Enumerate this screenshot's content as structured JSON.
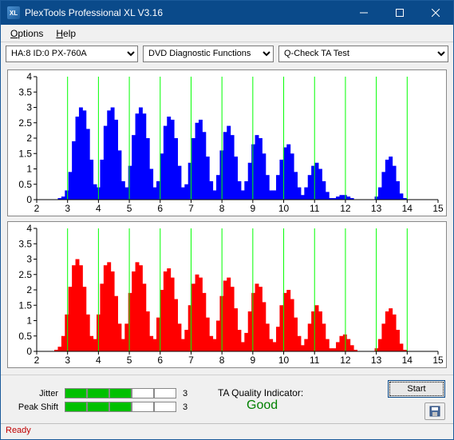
{
  "window": {
    "title": "PlexTools Professional XL V3.16",
    "logo_text": "XL"
  },
  "menubar": {
    "options": "Options",
    "help": "Help"
  },
  "toolbar": {
    "device": "HA:8 ID:0   PX-760A",
    "function": "DVD Diagnostic Functions",
    "test": "Q-Check TA Test"
  },
  "chart": {
    "x_min": 2,
    "x_max": 15,
    "x_step": 1,
    "y_min": 0,
    "y_max": 4,
    "y_step": 0.5,
    "plot_bg": "#ffffff",
    "grid_color": "#00ff00",
    "axis_color": "#000000",
    "top": {
      "fill": "#0000ff",
      "heights": [
        0,
        0,
        0,
        0,
        0,
        0,
        0.05,
        0.1,
        0.3,
        0.9,
        1.9,
        2.7,
        3.0,
        2.9,
        2.3,
        1.3,
        0.5,
        0.4,
        1.3,
        2.4,
        2.9,
        3.0,
        2.6,
        1.6,
        0.6,
        0.4,
        1.1,
        2.1,
        2.8,
        3.0,
        2.8,
        2.0,
        1.0,
        0.4,
        0.6,
        1.5,
        2.4,
        2.7,
        2.6,
        2.0,
        1.1,
        0.4,
        0.5,
        1.2,
        2.0,
        2.5,
        2.6,
        2.2,
        1.4,
        0.6,
        0.3,
        0.8,
        1.6,
        2.2,
        2.4,
        2.1,
        1.4,
        0.6,
        0.3,
        0.6,
        1.2,
        1.8,
        2.1,
        2.0,
        1.5,
        0.8,
        0.3,
        0.3,
        0.8,
        1.3,
        1.7,
        1.8,
        1.5,
        0.9,
        0.4,
        0.15,
        0.4,
        0.8,
        1.1,
        1.2,
        1.0,
        0.6,
        0.25,
        0.05,
        0.05,
        0.1,
        0.15,
        0.15,
        0.1,
        0.05,
        0,
        0,
        0,
        0,
        0,
        0,
        0.1,
        0.4,
        0.9,
        1.3,
        1.4,
        1.1,
        0.6,
        0.2,
        0.05,
        0,
        0,
        0,
        0,
        0,
        0,
        0,
        0,
        0
      ]
    },
    "bot": {
      "fill": "#ff0000",
      "heights": [
        0,
        0,
        0,
        0,
        0,
        0.05,
        0.15,
        0.5,
        1.2,
        2.1,
        2.8,
        3.0,
        2.8,
        2.1,
        1.2,
        0.5,
        0.4,
        1.2,
        2.2,
        2.8,
        2.9,
        2.6,
        1.8,
        0.9,
        0.4,
        0.9,
        1.9,
        2.6,
        2.9,
        2.8,
        2.2,
        1.3,
        0.5,
        0.4,
        1.1,
        2.0,
        2.6,
        2.7,
        2.4,
        1.7,
        0.9,
        0.4,
        0.7,
        1.5,
        2.2,
        2.5,
        2.4,
        1.9,
        1.1,
        0.5,
        0.4,
        1.0,
        1.8,
        2.3,
        2.4,
        2.1,
        1.4,
        0.7,
        0.3,
        0.6,
        1.3,
        1.9,
        2.2,
        2.1,
        1.6,
        0.9,
        0.4,
        0.3,
        0.8,
        1.5,
        1.9,
        2.0,
        1.7,
        1.1,
        0.5,
        0.2,
        0.4,
        0.9,
        1.3,
        1.5,
        1.3,
        0.9,
        0.4,
        0.1,
        0.1,
        0.3,
        0.5,
        0.55,
        0.4,
        0.2,
        0.05,
        0,
        0,
        0,
        0,
        0,
        0.1,
        0.4,
        0.9,
        1.3,
        1.4,
        1.2,
        0.7,
        0.25,
        0.05,
        0,
        0,
        0,
        0,
        0,
        0,
        0,
        0,
        0
      ]
    }
  },
  "metrics": {
    "jitter_label": "Jitter",
    "jitter_segments": [
      true,
      true,
      true,
      false,
      false
    ],
    "jitter_value": "3",
    "peak_label": "Peak Shift",
    "peak_segments": [
      true,
      true,
      true,
      false,
      false
    ],
    "peak_value": "3",
    "quality_label": "TA Quality Indicator:",
    "quality_value": "Good",
    "start_label": "Start"
  },
  "status": {
    "text": "Ready"
  }
}
